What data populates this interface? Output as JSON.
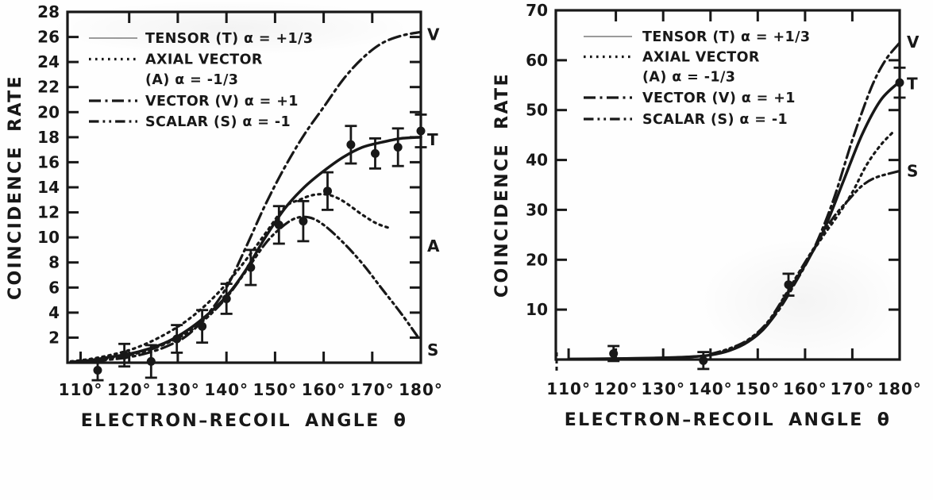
{
  "figure": {
    "description": "Scanned two-panel physics figure: coincidence rate versus electron-recoil angle with Tensor, Axial Vector, Vector and Scalar interaction curves and experimental points",
    "ink_color": "#181818",
    "background_color": "#fefefe"
  },
  "chart_data": [
    {
      "id": "left",
      "type": "line",
      "title": "",
      "xlabel": "ELECTRON–RECOIL ANGLE θ",
      "ylabel": "COINCIDENCE RATE",
      "xlim": [
        107.3,
        180
      ],
      "ylim": [
        0,
        28
      ],
      "grid": false,
      "x_ticks": [
        110,
        120,
        130,
        140,
        150,
        160,
        170,
        180
      ],
      "x_tick_labels": [
        "110°",
        "120°",
        "130°",
        "140°",
        "150°",
        "160°",
        "170°",
        "180°"
      ],
      "y_ticks": [
        2,
        4,
        6,
        8,
        10,
        12,
        14,
        16,
        18,
        20,
        22,
        24,
        26,
        28
      ],
      "y_tick_labels": [
        "2",
        "4",
        "6",
        "8",
        "10",
        "12",
        "14",
        "16",
        "18",
        "20",
        "22",
        "24",
        "26",
        "28"
      ],
      "legend_position": "top-left-inside",
      "legend": [
        {
          "style": "solid",
          "lines": [
            "TENSOR (T) α = +1/3"
          ]
        },
        {
          "style": "dotted",
          "lines": [
            "AXIAL VECTOR",
            "(A) α = -1/3"
          ]
        },
        {
          "style": "dashdot",
          "lines": [
            "VECTOR (V) α = +1"
          ]
        },
        {
          "style": "dashdotdot",
          "lines": [
            "SCALAR (S) α = -1"
          ]
        }
      ],
      "series": [
        {
          "name": "TENSOR (T) α = +1/3",
          "curve_label": "T",
          "style": "solid",
          "label_value": 17.8,
          "points": [
            [
              108,
              0.05
            ],
            [
              112,
              0.2
            ],
            [
              116,
              0.45
            ],
            [
              120,
              0.7
            ],
            [
              124,
              1.1
            ],
            [
              128,
              1.7
            ],
            [
              132,
              2.6
            ],
            [
              136,
              3.8
            ],
            [
              140,
              5.3
            ],
            [
              144,
              7.4
            ],
            [
              148,
              10.0
            ],
            [
              152,
              12.3
            ],
            [
              156,
              14.0
            ],
            [
              160,
              15.3
            ],
            [
              164,
              16.4
            ],
            [
              168,
              17.2
            ],
            [
              172,
              17.6
            ],
            [
              176,
              17.9
            ],
            [
              180,
              18.0
            ]
          ]
        },
        {
          "name": "AXIAL VECTOR (A) α = -1/3",
          "curve_label": "A",
          "style": "dotted",
          "label_value": 9.3,
          "points": [
            [
              108,
              0.1
            ],
            [
              112,
              0.3
            ],
            [
              116,
              0.6
            ],
            [
              120,
              1.0
            ],
            [
              124,
              1.6
            ],
            [
              128,
              2.4
            ],
            [
              132,
              3.4
            ],
            [
              136,
              4.7
            ],
            [
              140,
              6.3
            ],
            [
              144,
              8.2
            ],
            [
              148,
              10.3
            ],
            [
              152,
              12.4
            ],
            [
              155,
              13.0
            ],
            [
              158,
              13.4
            ],
            [
              161,
              13.4
            ],
            [
              164,
              12.9
            ],
            [
              168,
              11.8
            ],
            [
              171,
              11.1
            ],
            [
              174,
              10.7
            ]
          ]
        },
        {
          "name": "VECTOR (V) α = +1",
          "curve_label": "V",
          "style": "dashdot",
          "label_value": 26.2,
          "points": [
            [
              108,
              0.02
            ],
            [
              112,
              0.1
            ],
            [
              116,
              0.25
            ],
            [
              120,
              0.45
            ],
            [
              124,
              0.8
            ],
            [
              128,
              1.35
            ],
            [
              132,
              2.2
            ],
            [
              136,
              3.8
            ],
            [
              140,
              6.0
            ],
            [
              144,
              9.2
            ],
            [
              148,
              12.6
            ],
            [
              152,
              15.6
            ],
            [
              156,
              18.2
            ],
            [
              160,
              20.4
            ],
            [
              164,
              22.6
            ],
            [
              168,
              24.3
            ],
            [
              172,
              25.5
            ],
            [
              176,
              26.1
            ],
            [
              180,
              26.4
            ]
          ]
        },
        {
          "name": "SCALAR (S) α = -1",
          "curve_label": "S",
          "style": "dashdotdot",
          "label_value": 1.0,
          "points": [
            [
              108,
              0.05
            ],
            [
              112,
              0.15
            ],
            [
              116,
              0.35
            ],
            [
              120,
              0.6
            ],
            [
              124,
              1.0
            ],
            [
              128,
              1.6
            ],
            [
              132,
              2.4
            ],
            [
              136,
              3.6
            ],
            [
              140,
              5.2
            ],
            [
              144,
              7.3
            ],
            [
              148,
              9.5
            ],
            [
              151,
              10.7
            ],
            [
              154,
              11.5
            ],
            [
              157,
              11.6
            ],
            [
              160,
              11.0
            ],
            [
              164,
              9.6
            ],
            [
              168,
              7.9
            ],
            [
              172,
              5.9
            ],
            [
              176,
              3.9
            ],
            [
              179.5,
              2.0
            ]
          ]
        }
      ],
      "data_points": [
        {
          "angle": 113.5,
          "rate": -0.6,
          "err": 0.8
        },
        {
          "angle": 119,
          "rate": 0.6,
          "err": 0.9
        },
        {
          "angle": 124.5,
          "rate": 0.1,
          "err": 1.3
        },
        {
          "angle": 129.8,
          "rate": 1.9,
          "err": 1.1
        },
        {
          "angle": 135,
          "rate": 2.9,
          "err": 1.3
        },
        {
          "angle": 140,
          "rate": 5.1,
          "err": 1.2
        },
        {
          "angle": 145,
          "rate": 7.6,
          "err": 1.4
        },
        {
          "angle": 150.8,
          "rate": 11.0,
          "err": 1.5
        },
        {
          "angle": 155.8,
          "rate": 11.3,
          "err": 1.6
        },
        {
          "angle": 160.8,
          "rate": 13.7,
          "err": 1.5
        },
        {
          "angle": 165.6,
          "rate": 17.4,
          "err": 1.5
        },
        {
          "angle": 170.6,
          "rate": 16.7,
          "err": 1.2
        },
        {
          "angle": 175.3,
          "rate": 17.2,
          "err": 1.5
        },
        {
          "angle": 180,
          "rate": 18.5,
          "err": 1.3
        }
      ]
    },
    {
      "id": "right",
      "type": "line",
      "title": "",
      "xlabel": "ELECTRON–RECOIL ANGLE θ",
      "ylabel": "COINCIDENCE RATE",
      "xlim": [
        107.3,
        180
      ],
      "ylim": [
        0,
        70
      ],
      "grid": false,
      "x_ticks": [
        110,
        120,
        130,
        140,
        150,
        160,
        170,
        180
      ],
      "x_tick_labels": [
        "110°",
        "120°",
        "130°",
        "140°",
        "150°",
        "160°",
        "170°",
        "180°"
      ],
      "y_ticks": [
        10,
        20,
        30,
        40,
        50,
        60,
        70
      ],
      "y_tick_labels": [
        "10",
        "20",
        "30",
        "40",
        "50",
        "60",
        "70"
      ],
      "legend_position": "top-left-inside",
      "legend": [
        {
          "style": "solid",
          "lines": [
            "TENSOR (T) α = +1/3"
          ]
        },
        {
          "style": "dotted",
          "lines": [
            "AXIAL VECTOR",
            "(A) α = -1/3"
          ]
        },
        {
          "style": "dashdot",
          "lines": [
            "VECTOR (V) α = +1"
          ]
        },
        {
          "style": "dashdotdot",
          "lines": [
            "SCALAR (S) α = -1"
          ]
        }
      ],
      "series": [
        {
          "name": "TENSOR (T) α = +1/3",
          "curve_label": "T",
          "style": "solid",
          "label_value": 55.3,
          "points": [
            [
              110,
              0.1
            ],
            [
              116,
              0.15
            ],
            [
              122,
              0.2
            ],
            [
              128,
              0.3
            ],
            [
              132,
              0.4
            ],
            [
              136,
              0.55
            ],
            [
              140,
              0.9
            ],
            [
              144,
              1.8
            ],
            [
              148,
              3.6
            ],
            [
              152,
              6.9
            ],
            [
              156,
              12.8
            ],
            [
              160,
              19.0
            ],
            [
              164,
              26.0
            ],
            [
              168,
              35.5
            ],
            [
              172,
              45.0
            ],
            [
              176,
              52.0
            ],
            [
              180,
              55.7
            ]
          ]
        },
        {
          "name": "AXIAL VECTOR (A) α = -1/3",
          "curve_label": null,
          "style": "dotted",
          "label_value": null,
          "points": [
            [
              140,
              1.0
            ],
            [
              144,
              2.0
            ],
            [
              148,
              3.8
            ],
            [
              152,
              7.1
            ],
            [
              156,
              13.0
            ],
            [
              160,
              19.3
            ],
            [
              164,
              25.0
            ],
            [
              167,
              29.0
            ],
            [
              170,
              33.5
            ],
            [
              173,
              39.0
            ],
            [
              176,
              43.0
            ],
            [
              178.5,
              45.5
            ]
          ]
        },
        {
          "name": "VECTOR (V) α = +1",
          "curve_label": "V",
          "style": "dashdot",
          "label_value": 63.6,
          "points": [
            [
              130,
              0.3
            ],
            [
              134,
              0.45
            ],
            [
              138,
              0.7
            ],
            [
              142,
              1.3
            ],
            [
              146,
              2.6
            ],
            [
              150,
              5.0
            ],
            [
              154,
              9.3
            ],
            [
              158,
              15.5
            ],
            [
              162,
              22.5
            ],
            [
              166,
              32.0
            ],
            [
              170,
              44.0
            ],
            [
              174,
              54.5
            ],
            [
              177,
              60.0
            ],
            [
              180,
              63.5
            ]
          ]
        },
        {
          "name": "SCALAR (S) α = -1",
          "curve_label": "S",
          "style": "dashdotdot",
          "label_value": 37.8,
          "points": [
            [
              140,
              1.1
            ],
            [
              144,
              2.2
            ],
            [
              148,
              4.0
            ],
            [
              152,
              7.4
            ],
            [
              156,
              13.2
            ],
            [
              160,
              19.5
            ],
            [
              163,
              24.0
            ],
            [
              166,
              28.5
            ],
            [
              169,
              31.8
            ],
            [
              172,
              34.8
            ],
            [
              175,
              36.5
            ],
            [
              180,
              37.8
            ]
          ]
        }
      ],
      "data_points": [
        {
          "angle": 119.5,
          "rate": 1.2,
          "err": 1.5
        },
        {
          "angle": 138.5,
          "rate": -0.2,
          "err": 1.7
        },
        {
          "angle": 156.5,
          "rate": 15.0,
          "err": 2.2
        },
        {
          "angle": 180,
          "rate": 55.5,
          "err": 3.0
        }
      ]
    }
  ]
}
